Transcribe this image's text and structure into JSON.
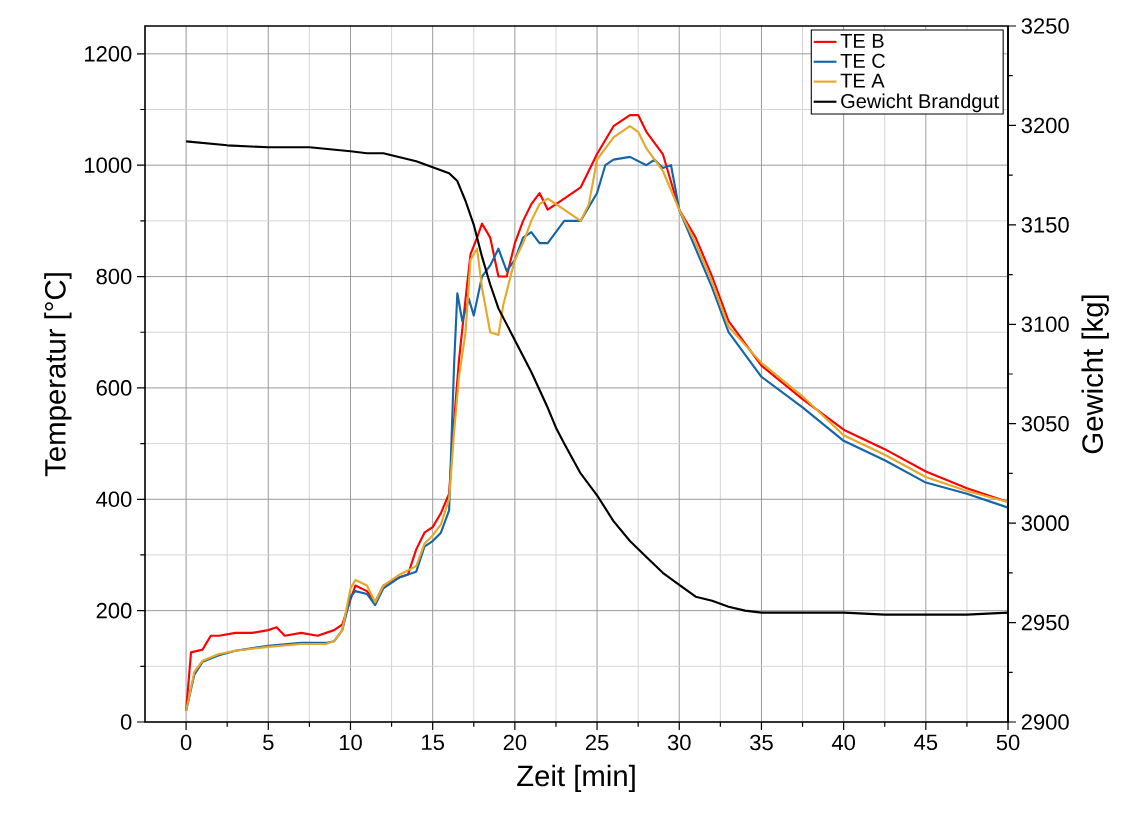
{
  "chart_data": {
    "type": "line",
    "xlabel": "Zeit [min]",
    "ylabel": "Temperatur [°C]",
    "y2label": "Gewicht [kg]",
    "xlim": [
      -2.5,
      50
    ],
    "xticks": [
      0,
      5,
      10,
      15,
      20,
      25,
      30,
      35,
      40,
      45,
      50
    ],
    "ylim": [
      0,
      1250
    ],
    "yticks": [
      0,
      200,
      400,
      600,
      800,
      1000,
      1200
    ],
    "y2lim": [
      2900,
      3250
    ],
    "y2ticks": [
      2900,
      2950,
      3000,
      3050,
      3100,
      3150,
      3200,
      3250
    ],
    "grid": true,
    "legend": "top right",
    "series": [
      {
        "name": "TE B",
        "color": "#ff0000",
        "x": [
          0,
          0.3,
          1,
          1.5,
          2,
          3,
          4,
          5,
          5.5,
          6,
          7,
          8,
          9,
          9.5,
          10,
          10.3,
          11,
          11.5,
          12,
          13,
          13.5,
          14,
          14.5,
          15,
          15.5,
          16,
          16.3,
          16.6,
          17,
          17.3,
          17.7,
          18,
          18.5,
          19,
          19.5,
          20,
          20.5,
          21,
          21.5,
          22,
          23,
          24,
          25,
          26,
          27,
          27.5,
          28,
          29,
          30,
          31,
          32,
          33,
          35,
          37.5,
          40,
          42.5,
          45,
          47.5,
          50
        ],
        "values": [
          20,
          125,
          130,
          155,
          155,
          160,
          160,
          165,
          170,
          155,
          160,
          155,
          165,
          175,
          220,
          245,
          235,
          215,
          245,
          260,
          265,
          310,
          340,
          350,
          375,
          410,
          540,
          650,
          760,
          840,
          870,
          895,
          870,
          800,
          800,
          860,
          900,
          930,
          950,
          920,
          940,
          960,
          1020,
          1070,
          1090,
          1090,
          1060,
          1020,
          920,
          870,
          800,
          720,
          640,
          580,
          525,
          490,
          450,
          420,
          395
        ]
      },
      {
        "name": "TE C",
        "color": "#1565a9",
        "x": [
          0,
          0.5,
          1,
          2,
          3,
          5,
          7,
          8.5,
          9,
          9.5,
          10,
          10.3,
          11,
          11.5,
          12,
          13,
          14,
          14.5,
          15,
          15.5,
          16,
          16.3,
          16.5,
          16.8,
          17.2,
          17.5,
          18,
          18.5,
          19,
          19.5,
          20,
          20.5,
          21,
          21.5,
          22,
          23,
          24,
          25,
          25.5,
          26,
          27,
          28,
          28.5,
          29,
          29.5,
          30,
          31,
          32,
          33,
          35,
          37.5,
          40,
          42.5,
          45,
          47.5,
          50
        ],
        "values": [
          20,
          85,
          108,
          120,
          128,
          137,
          142,
          142,
          145,
          165,
          225,
          235,
          230,
          210,
          240,
          260,
          270,
          315,
          325,
          340,
          380,
          640,
          770,
          720,
          760,
          730,
          800,
          820,
          850,
          810,
          830,
          870,
          880,
          860,
          860,
          900,
          900,
          950,
          1000,
          1010,
          1015,
          1000,
          1010,
          995,
          1000,
          920,
          850,
          780,
          700,
          620,
          565,
          505,
          470,
          430,
          410,
          385
        ]
      },
      {
        "name": "TE A",
        "color": "#e6a829",
        "x": [
          0,
          0.5,
          1,
          2,
          3,
          5,
          7,
          8.5,
          9,
          9.5,
          10,
          10.3,
          11,
          11.5,
          12,
          13,
          14,
          14.5,
          15,
          15.5,
          16,
          16.3,
          16.6,
          17,
          17.3,
          17.7,
          18,
          18.5,
          19,
          19.3,
          20,
          20.5,
          21,
          21.5,
          22,
          23,
          24,
          24.5,
          25,
          26,
          27,
          27.5,
          28,
          29,
          30,
          31,
          32,
          33,
          35,
          37.5,
          40,
          42.5,
          45,
          47.5,
          50
        ],
        "values": [
          20,
          90,
          110,
          122,
          128,
          135,
          140,
          140,
          145,
          165,
          240,
          255,
          245,
          215,
          245,
          265,
          280,
          320,
          335,
          355,
          400,
          520,
          620,
          700,
          830,
          850,
          780,
          700,
          695,
          750,
          830,
          860,
          900,
          930,
          940,
          920,
          900,
          930,
          1010,
          1050,
          1070,
          1060,
          1030,
          990,
          920,
          860,
          790,
          710,
          645,
          585,
          515,
          480,
          440,
          415,
          395
        ]
      },
      {
        "name": "Gewicht Brandgut",
        "color": "#000000",
        "axis": "y2",
        "x": [
          0,
          2.5,
          5,
          7.5,
          10,
          11,
          12,
          13,
          14,
          15,
          16,
          16.5,
          17,
          17.5,
          18,
          18.5,
          19,
          20,
          21,
          22,
          22.5,
          23,
          24,
          25,
          26,
          27,
          28,
          29,
          30,
          31,
          32,
          33,
          34,
          35,
          37.5,
          40,
          42.5,
          45,
          47.5,
          50
        ],
        "values": [
          3192,
          3190,
          3189,
          3189,
          3187,
          3186,
          3186,
          3184,
          3182,
          3179,
          3176,
          3172,
          3162,
          3150,
          3134,
          3120,
          3108,
          3092,
          3076,
          3058,
          3048,
          3040,
          3025,
          3014,
          3001,
          2991,
          2983,
          2975,
          2969,
          2963,
          2961,
          2958,
          2956,
          2955,
          2955,
          2955,
          2954,
          2954,
          2954,
          2955
        ]
      }
    ]
  }
}
